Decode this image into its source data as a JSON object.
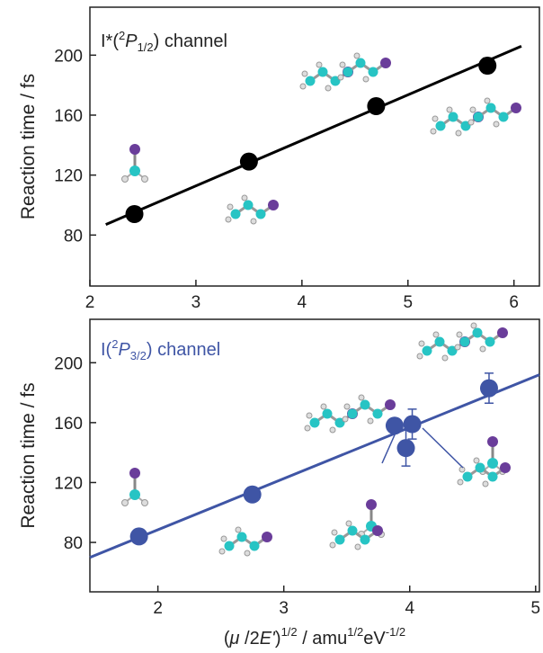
{
  "chart_data": [
    {
      "type": "scatter",
      "title": [
        "I*(",
        "2",
        "P",
        "1/2",
        ") channel"
      ],
      "y_label": "Reaction time / fs",
      "color": "#000000",
      "xlim": [
        2,
        6.24
      ],
      "xticks": [
        2,
        3,
        4,
        5,
        6
      ],
      "ylim": [
        46,
        232
      ],
      "yticks": [
        80,
        120,
        160,
        200
      ],
      "series": [
        {
          "x": [
            2.42,
            3.5,
            4.7,
            5.75
          ],
          "values": [
            94,
            129,
            166,
            193
          ],
          "errors": [
            null,
            null,
            null,
            5
          ]
        }
      ],
      "fit": {
        "x": [
          2.15,
          6.07
        ],
        "values": [
          87,
          206
        ]
      }
    },
    {
      "type": "scatter",
      "title": [
        "I(",
        "2",
        "P",
        "3/2",
        ") channel"
      ],
      "y_label": "Reaction time / fs",
      "x_label": [
        "(",
        "μ",
        " /2",
        "E'",
        ")",
        "1/2",
        " / amu",
        "1/2",
        "eV",
        "-1/2"
      ],
      "color": "#3f55a5",
      "xlim": [
        1.46,
        5.03
      ],
      "xticks": [
        2,
        3,
        4,
        5
      ],
      "ylim": [
        47,
        229
      ],
      "yticks": [
        80,
        120,
        160,
        200
      ],
      "series": [
        {
          "x": [
            1.85,
            2.75,
            3.88,
            3.97,
            4.02,
            4.63
          ],
          "values": [
            84,
            112,
            158,
            143,
            159,
            183
          ],
          "errors": [
            null,
            null,
            null,
            12,
            10,
            10
          ]
        }
      ],
      "fit": {
        "x": [
          1.46,
          5.03
        ],
        "values": [
          70,
          192
        ]
      }
    }
  ]
}
